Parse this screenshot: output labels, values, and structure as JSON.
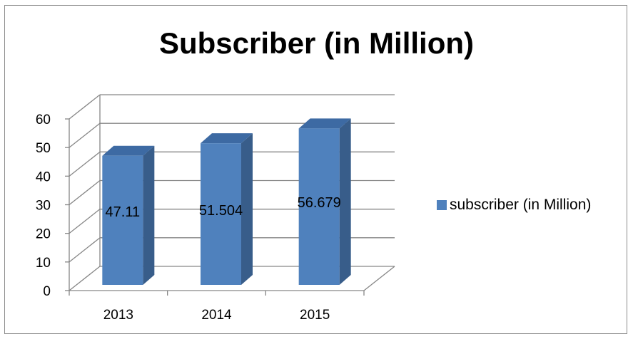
{
  "chart_data": {
    "type": "bar",
    "title": "Subscriber (in Million)",
    "categories": [
      "2013",
      "2014",
      "2015"
    ],
    "series": [
      {
        "name": "subscriber (in Million)",
        "values": [
          47.11,
          51.504,
          56.679
        ],
        "value_labels": [
          "47.11",
          "51.504",
          "56.679"
        ],
        "color": "#4f81bd"
      }
    ],
    "ylim": [
      0,
      60
    ],
    "yticks": [
      "0",
      "10",
      "20",
      "30",
      "40",
      "50",
      "60"
    ],
    "grid": true,
    "legend": "right",
    "style": "3d-column"
  }
}
